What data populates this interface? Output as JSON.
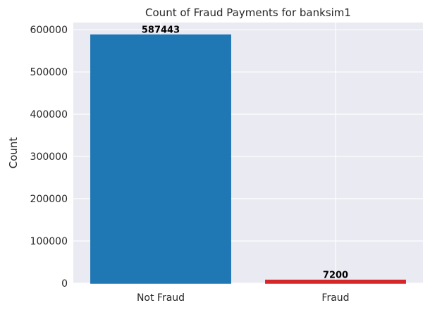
{
  "chart_data": {
    "type": "bar",
    "title": "Count of Fraud Payments for banksim1",
    "xlabel": "",
    "ylabel": "Count",
    "categories": [
      "Not Fraud",
      "Fraud"
    ],
    "values": [
      587443,
      7200
    ],
    "data_labels": [
      "587443",
      "7200"
    ],
    "colors": [
      "#1f77b4",
      "#d62728"
    ],
    "ylim": [
      0,
      616815
    ],
    "yticks": [
      0,
      100000,
      200000,
      300000,
      400000,
      500000,
      600000
    ],
    "ytick_labels": [
      "0",
      "100000",
      "200000",
      "300000",
      "400000",
      "500000",
      "600000"
    ],
    "grid": true,
    "legend": "none",
    "style": {
      "plot_background": "#eaeaf2",
      "grid_color": "#ffffff",
      "text_color": "#262626"
    }
  }
}
